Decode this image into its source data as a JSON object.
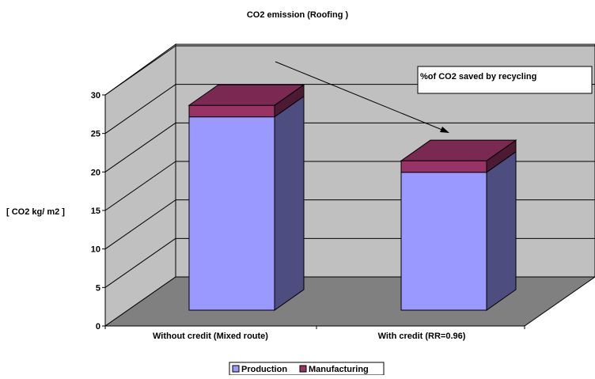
{
  "chart_data": {
    "type": "bar",
    "stacked": true,
    "view": "3d",
    "title": "CO2 emission  (Roofing )",
    "ylabel": "[ CO2 kg/ m2 ]",
    "xlabel": "",
    "ylim": [
      0,
      30
    ],
    "yticks": [
      "0",
      "5",
      "10",
      "15",
      "20",
      "25",
      "30"
    ],
    "categories": [
      "Without credit (Mixed route)",
      "With credit (RR=0.96)"
    ],
    "series": [
      {
        "name": "Production",
        "values": [
          25.1,
          17.9
        ],
        "color": "#9999ff"
      },
      {
        "name": "Manufacturing",
        "values": [
          1.5,
          1.5
        ],
        "color": "#993366"
      }
    ],
    "grid": true,
    "legend_position": "bottom",
    "annotation": "%of CO2 saved by recycling"
  }
}
